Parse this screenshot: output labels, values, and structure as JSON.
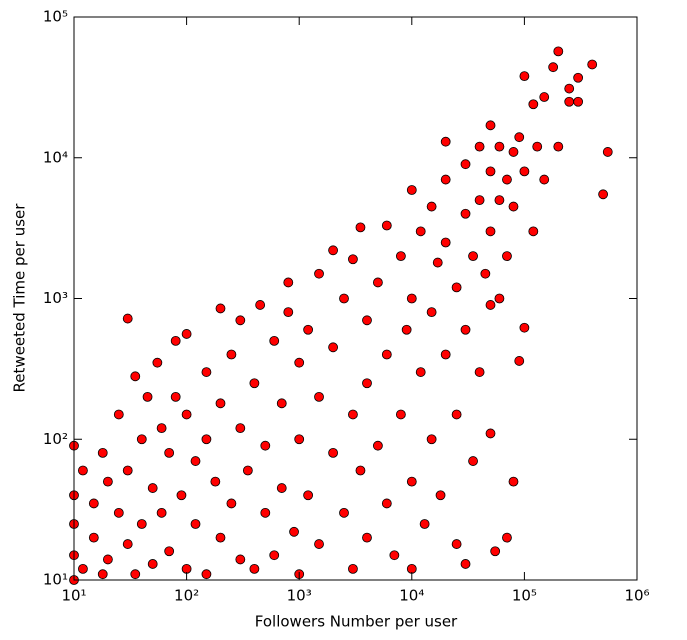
{
  "chart_data": {
    "type": "scatter",
    "x_label": "Followers Number per user",
    "y_label": "Retweeted Time per user",
    "xscale": "log",
    "yscale": "log",
    "xlim": [
      10,
      1000000
    ],
    "ylim": [
      10,
      100000
    ],
    "xticks": [
      {
        "value": 10,
        "label": "10¹"
      },
      {
        "value": 100,
        "label": "10²"
      },
      {
        "value": 1000,
        "label": "10³"
      },
      {
        "value": 10000,
        "label": "10⁴"
      },
      {
        "value": 100000,
        "label": "10⁵"
      },
      {
        "value": 1000000,
        "label": "10⁶"
      }
    ],
    "yticks": [
      {
        "value": 10,
        "label": "10¹"
      },
      {
        "value": 100,
        "label": "10²"
      },
      {
        "value": 1000,
        "label": "10³"
      },
      {
        "value": 10000,
        "label": "10⁴"
      },
      {
        "value": 100000,
        "label": "10⁵"
      }
    ],
    "grid": false,
    "series": [
      {
        "color": "#ff0000",
        "x": [
          10,
          10,
          10,
          10,
          10,
          12,
          12,
          15,
          15,
          18,
          18,
          20,
          20,
          25,
          25,
          30,
          30,
          30,
          35,
          35,
          40,
          40,
          45,
          50,
          50,
          55,
          60,
          60,
          70,
          70,
          80,
          80,
          90,
          100,
          100,
          100,
          120,
          120,
          150,
          150,
          150,
          180,
          200,
          200,
          200,
          250,
          250,
          300,
          300,
          300,
          350,
          400,
          400,
          450,
          500,
          500,
          600,
          600,
          700,
          700,
          800,
          800,
          900,
          1000,
          1000,
          1000,
          1200,
          1200,
          1500,
          1500,
          1500,
          2000,
          2000,
          2000,
          2500,
          2500,
          3000,
          3000,
          3000,
          3500,
          3500,
          4000,
          4000,
          4000,
          5000,
          5000,
          6000,
          6000,
          6000,
          7000,
          8000,
          8000,
          9000,
          10000,
          10000,
          10000,
          10000,
          12000,
          12000,
          13000,
          15000,
          15000,
          15000,
          17000,
          18000,
          20000,
          20000,
          20000,
          20000,
          25000,
          25000,
          25000,
          30000,
          30000,
          30000,
          30000,
          35000,
          35000,
          40000,
          40000,
          40000,
          45000,
          50000,
          50000,
          50000,
          50000,
          50000,
          55000,
          60000,
          60000,
          60000,
          70000,
          70000,
          70000,
          80000,
          80000,
          80000,
          90000,
          90000,
          100000,
          100000,
          100000,
          120000,
          120000,
          130000,
          150000,
          150000,
          180000,
          200000,
          200000,
          250000,
          300000,
          400000,
          500000,
          550000,
          250000,
          300000
        ],
        "y": [
          10,
          15,
          25,
          40,
          90,
          12,
          60,
          20,
          35,
          11,
          80,
          50,
          14,
          30,
          150,
          720,
          18,
          60,
          280,
          11,
          100,
          25,
          200,
          45,
          13,
          350,
          120,
          30,
          16,
          80,
          500,
          200,
          40,
          560,
          12,
          150,
          70,
          25,
          300,
          11,
          100,
          50,
          850,
          180,
          20,
          400,
          35,
          120,
          14,
          700,
          60,
          250,
          12,
          900,
          90,
          30,
          500,
          15,
          180,
          45,
          1300,
          800,
          22,
          350,
          100,
          11,
          600,
          40,
          1500,
          200,
          18,
          2200,
          80,
          450,
          30,
          1000,
          150,
          12,
          1900,
          3200,
          60,
          700,
          250,
          20,
          1300,
          90,
          3300,
          400,
          35,
          15,
          2000,
          150,
          600,
          5900,
          1000,
          50,
          12,
          300,
          3000,
          25,
          4500,
          800,
          100,
          1800,
          40,
          7000,
          400,
          13000,
          2500,
          1200,
          150,
          18,
          9000,
          4000,
          600,
          13,
          2000,
          70,
          12000,
          5000,
          300,
          1500,
          17000,
          8000,
          3000,
          900,
          110,
          16,
          12000,
          5000,
          1000,
          20,
          7000,
          2000,
          11000,
          4500,
          50,
          14000,
          360,
          620,
          8000,
          38000,
          24000,
          3000,
          12000,
          27000,
          7000,
          44000,
          57000,
          12000,
          25000,
          37000,
          46000,
          5500,
          11000,
          31000,
          25000
        ]
      }
    ]
  }
}
